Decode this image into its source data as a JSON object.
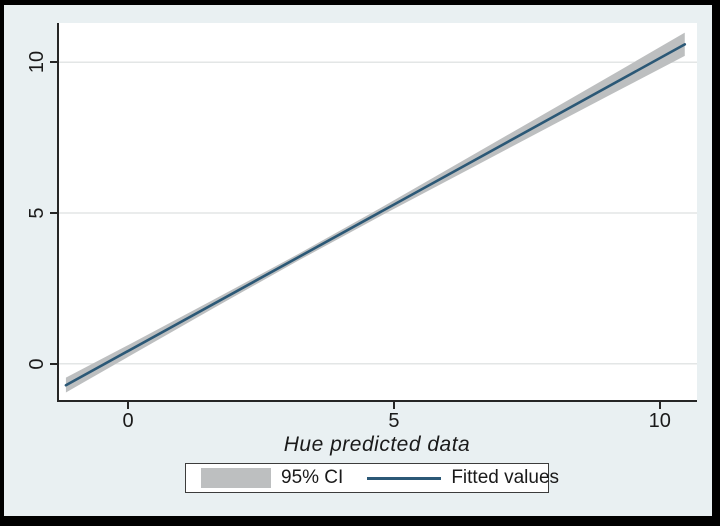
{
  "colors": {
    "frame_border": "#000000",
    "figure_background": "#e9f0f2",
    "plot_background": "#ffffff",
    "axis": "#262626",
    "gridline": "#e3e6e6",
    "ci_band": "#bdbfc0",
    "fit_line": "#2b5876",
    "text": "#1a1a1a"
  },
  "chart_data": {
    "type": "line",
    "title": "",
    "xlabel": "Hue predicted data",
    "ylabel": "",
    "x_ticks": [
      0,
      5,
      10
    ],
    "y_ticks": [
      0,
      5,
      10
    ],
    "x_range": [
      -1.3,
      10.7
    ],
    "y_range": [
      -1.2,
      11.3
    ],
    "grid": "horizontal-only",
    "band": {
      "name": "95% CI",
      "color": "#bdbfc0",
      "x": [
        -1.17,
        0.0,
        1.6,
        3.2,
        4.8,
        6.4,
        8.0,
        9.2,
        10.47
      ],
      "upper": [
        -0.46,
        0.62,
        2.12,
        3.64,
        5.22,
        6.84,
        8.46,
        9.68,
        10.98
      ],
      "lower": [
        -0.95,
        0.23,
        1.84,
        3.42,
        4.95,
        6.44,
        7.93,
        9.04,
        10.21
      ]
    },
    "line": {
      "name": "Fitted values",
      "color": "#2b5876",
      "x": [
        -1.17,
        10.47
      ],
      "y": [
        -0.71,
        10.59
      ]
    },
    "legend": {
      "position": "bottom-center",
      "entries": [
        "95% CI",
        "Fitted values"
      ]
    }
  }
}
